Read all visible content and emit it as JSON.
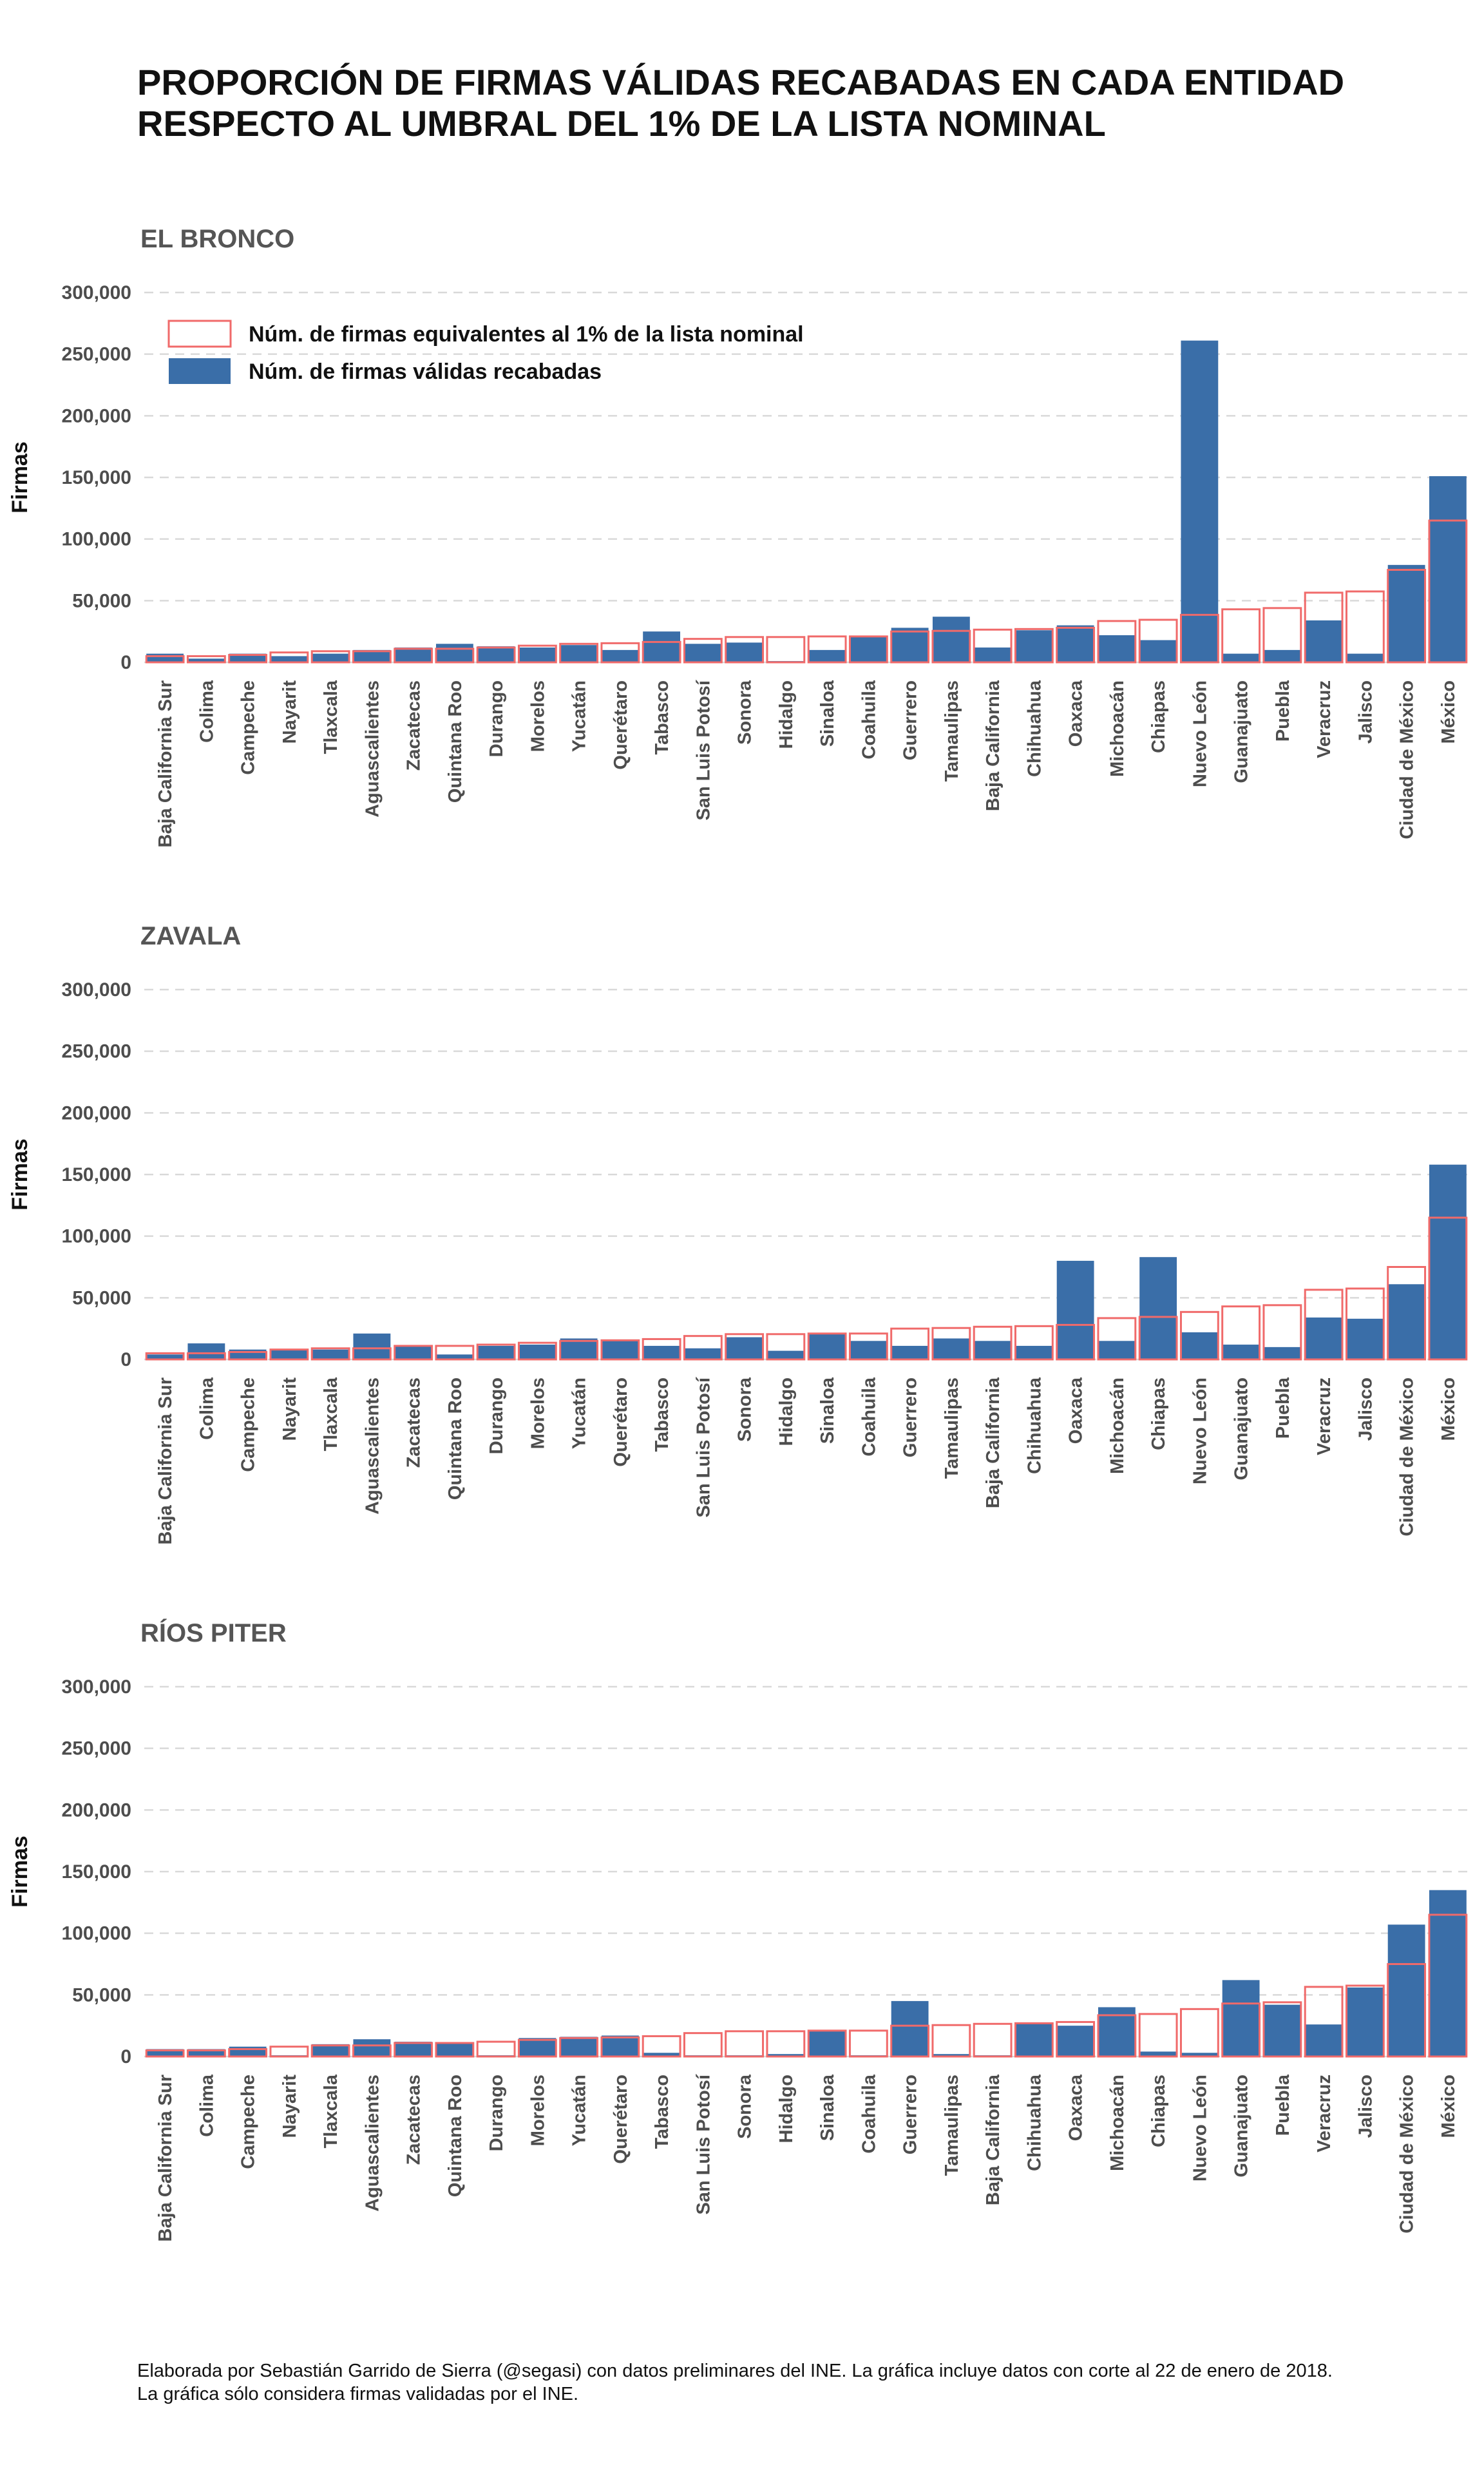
{
  "title_lines": [
    "PROPORCIÓN DE FIRMAS VÁLIDAS RECABADAS EN CADA ENTIDAD",
    "RESPECTO AL UMBRAL DEL 1% DE LA LISTA NOMINAL"
  ],
  "caption_lines": [
    "Elaborada por Sebastián Garrido de Sierra (@segasi) con datos preliminares del INE. La gráfica incluye datos con corte al 22 de enero de 2018.",
    "La gráfica sólo considera firmas validadas por el INE."
  ],
  "colors": {
    "valid_fill": "#3a6ea8",
    "threshold_outline": "#f06a6a",
    "grid": "#d9d9d9"
  },
  "legend": {
    "threshold": "Núm. de firmas equivalentes al 1% de la lista nominal",
    "valid": "Núm. de firmas válidas recabadas"
  },
  "chart_data": [
    {
      "type": "bar",
      "title": "EL BRONCO",
      "ylabel": "Firmas",
      "xlabel": "",
      "ylim": [
        0,
        300000
      ],
      "yticks": [
        "0",
        "50,000",
        "100,000",
        "150,000",
        "200,000",
        "250,000",
        "300,000"
      ],
      "grid": true,
      "legend_position": "top-left",
      "categories": [
        "Baja California Sur",
        "Colima",
        "Campeche",
        "Nayarit",
        "Tlaxcala",
        "Aguascalientes",
        "Zacatecas",
        "Quintana Roo",
        "Durango",
        "Morelos",
        "Yucatán",
        "Querétaro",
        "Tabasco",
        "San Luis Potosí",
        "Sonora",
        "Hidalgo",
        "Sinaloa",
        "Coahuila",
        "Guerrero",
        "Tamaulipas",
        "Baja California",
        "Chihuahua",
        "Oaxaca",
        "Michoacán",
        "Chiapas",
        "Nuevo León",
        "Guanajuato",
        "Puebla",
        "Veracruz",
        "Jalisco",
        "Ciudad de México",
        "México"
      ],
      "series": [
        {
          "name": "Núm. de firmas equivalentes al 1% de la lista nominal",
          "values": [
            5000,
            5000,
            6000,
            8000,
            9000,
            9000,
            11000,
            11000,
            12000,
            13500,
            15000,
            15500,
            16500,
            19000,
            20500,
            20500,
            21000,
            21000,
            25000,
            25500,
            26500,
            27000,
            28000,
            33500,
            34500,
            38500,
            43000,
            44000,
            56500,
            57500,
            75000,
            115000
          ]
        },
        {
          "name": "Núm. de firmas válidas recabadas",
          "values": [
            7000,
            3000,
            7000,
            5000,
            7000,
            10000,
            12000,
            15000,
            13000,
            12000,
            14000,
            10000,
            25000,
            15000,
            16000,
            1000,
            10000,
            21000,
            28000,
            37000,
            12000,
            26000,
            30000,
            22000,
            18000,
            261000,
            7000,
            10000,
            34000,
            7000,
            79000,
            151000
          ]
        }
      ]
    },
    {
      "type": "bar",
      "title": "ZAVALA",
      "ylabel": "Firmas",
      "xlabel": "",
      "ylim": [
        0,
        300000
      ],
      "yticks": [
        "0",
        "50,000",
        "100,000",
        "150,000",
        "200,000",
        "250,000",
        "300,000"
      ],
      "grid": true,
      "categories": [
        "Baja California Sur",
        "Colima",
        "Campeche",
        "Nayarit",
        "Tlaxcala",
        "Aguascalientes",
        "Zacatecas",
        "Quintana Roo",
        "Durango",
        "Morelos",
        "Yucatán",
        "Querétaro",
        "Tabasco",
        "San Luis Potosí",
        "Sonora",
        "Hidalgo",
        "Sinaloa",
        "Coahuila",
        "Guerrero",
        "Tamaulipas",
        "Baja California",
        "Chihuahua",
        "Oaxaca",
        "Michoacán",
        "Chiapas",
        "Nuevo León",
        "Guanajuato",
        "Puebla",
        "Veracruz",
        "Jalisco",
        "Ciudad de México",
        "México"
      ],
      "series": [
        {
          "name": "Núm. de firmas equivalentes al 1% de la lista nominal",
          "values": [
            5000,
            5000,
            6000,
            8000,
            9000,
            9000,
            11000,
            11000,
            12000,
            13500,
            15000,
            15500,
            16500,
            19000,
            20500,
            20500,
            21000,
            21000,
            25000,
            25500,
            26500,
            27000,
            28000,
            33500,
            34500,
            38500,
            43000,
            44000,
            56500,
            57500,
            75000,
            115000
          ]
        },
        {
          "name": "Núm. de firmas válidas recabadas",
          "values": [
            4000,
            13000,
            8000,
            8000,
            8000,
            21000,
            11000,
            4000,
            11000,
            12000,
            17000,
            15000,
            11000,
            9000,
            18000,
            7000,
            21000,
            15000,
            11000,
            17000,
            15000,
            11000,
            80000,
            15000,
            83000,
            22000,
            12000,
            10000,
            34000,
            33000,
            61000,
            158000
          ]
        }
      ]
    },
    {
      "type": "bar",
      "title": "RÍOS PITER",
      "ylabel": "Firmas",
      "xlabel": "",
      "ylim": [
        0,
        300000
      ],
      "yticks": [
        "0",
        "50,000",
        "100,000",
        "150,000",
        "200,000",
        "250,000",
        "300,000"
      ],
      "grid": true,
      "categories": [
        "Baja California Sur",
        "Colima",
        "Campeche",
        "Nayarit",
        "Tlaxcala",
        "Aguascalientes",
        "Zacatecas",
        "Quintana Roo",
        "Durango",
        "Morelos",
        "Yucatán",
        "Querétaro",
        "Tabasco",
        "San Luis Potosí",
        "Sonora",
        "Hidalgo",
        "Sinaloa",
        "Coahuila",
        "Guerrero",
        "Tamaulipas",
        "Baja California",
        "Chihuahua",
        "Oaxaca",
        "Michoacán",
        "Chiapas",
        "Nuevo León",
        "Guanajuato",
        "Puebla",
        "Veracruz",
        "Jalisco",
        "Ciudad de México",
        "México"
      ],
      "series": [
        {
          "name": "Núm. de firmas equivalentes al 1% de la lista nominal",
          "values": [
            5000,
            5000,
            6000,
            8000,
            9000,
            9000,
            11000,
            11000,
            12000,
            13500,
            15000,
            15500,
            16500,
            19000,
            20500,
            20500,
            21000,
            21000,
            25000,
            25500,
            26500,
            27000,
            28000,
            33500,
            34500,
            38500,
            43000,
            44000,
            56500,
            57500,
            75000,
            115000
          ]
        },
        {
          "name": "Núm. de firmas válidas recabadas",
          "values": [
            6000,
            6000,
            8000,
            1000,
            10000,
            14000,
            12000,
            11000,
            1000,
            15000,
            16000,
            17000,
            3000,
            1000,
            1000,
            2000,
            21000,
            1000,
            45000,
            2000,
            1000,
            27000,
            25000,
            40000,
            4000,
            3000,
            62000,
            42000,
            26000,
            56000,
            107000,
            135000
          ]
        }
      ]
    }
  ]
}
